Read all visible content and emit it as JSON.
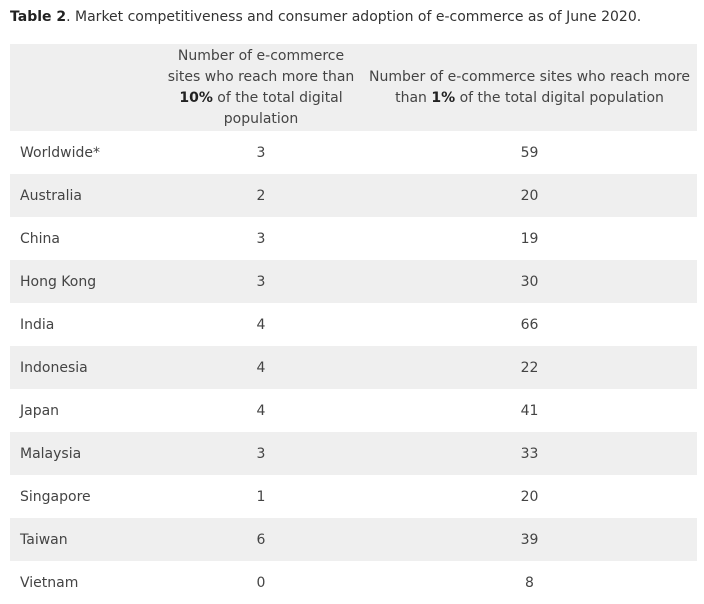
{
  "caption": {
    "label": "Table 2",
    "text": ". Market competitiveness and consumer adoption of e-commerce as of June 2020."
  },
  "header": {
    "col1": {
      "before": "Number of e-commerce sites who reach more than ",
      "bold": "10%",
      "after": " of the total digital population"
    },
    "col2": {
      "before": "Number of e-commerce sites who reach more than ",
      "bold": "1%",
      "after": " of the total digital population"
    }
  },
  "rows": [
    {
      "country": "Worldwide*",
      "over10": "3",
      "over1": "59"
    },
    {
      "country": "Australia",
      "over10": "2",
      "over1": "20"
    },
    {
      "country": "China",
      "over10": "3",
      "over1": "19"
    },
    {
      "country": "Hong Kong",
      "over10": "3",
      "over1": "30"
    },
    {
      "country": "India",
      "over10": "4",
      "over1": "66"
    },
    {
      "country": "Indonesia",
      "over10": "4",
      "over1": "22"
    },
    {
      "country": "Japan",
      "over10": "4",
      "over1": "41"
    },
    {
      "country": "Malaysia",
      "over10": "3",
      "over1": "33"
    },
    {
      "country": "Singapore",
      "over10": "1",
      "over1": "20"
    },
    {
      "country": "Taiwan",
      "over10": "6",
      "over1": "39"
    },
    {
      "country": "Vietnam",
      "over10": "0",
      "over1": "8"
    }
  ]
}
